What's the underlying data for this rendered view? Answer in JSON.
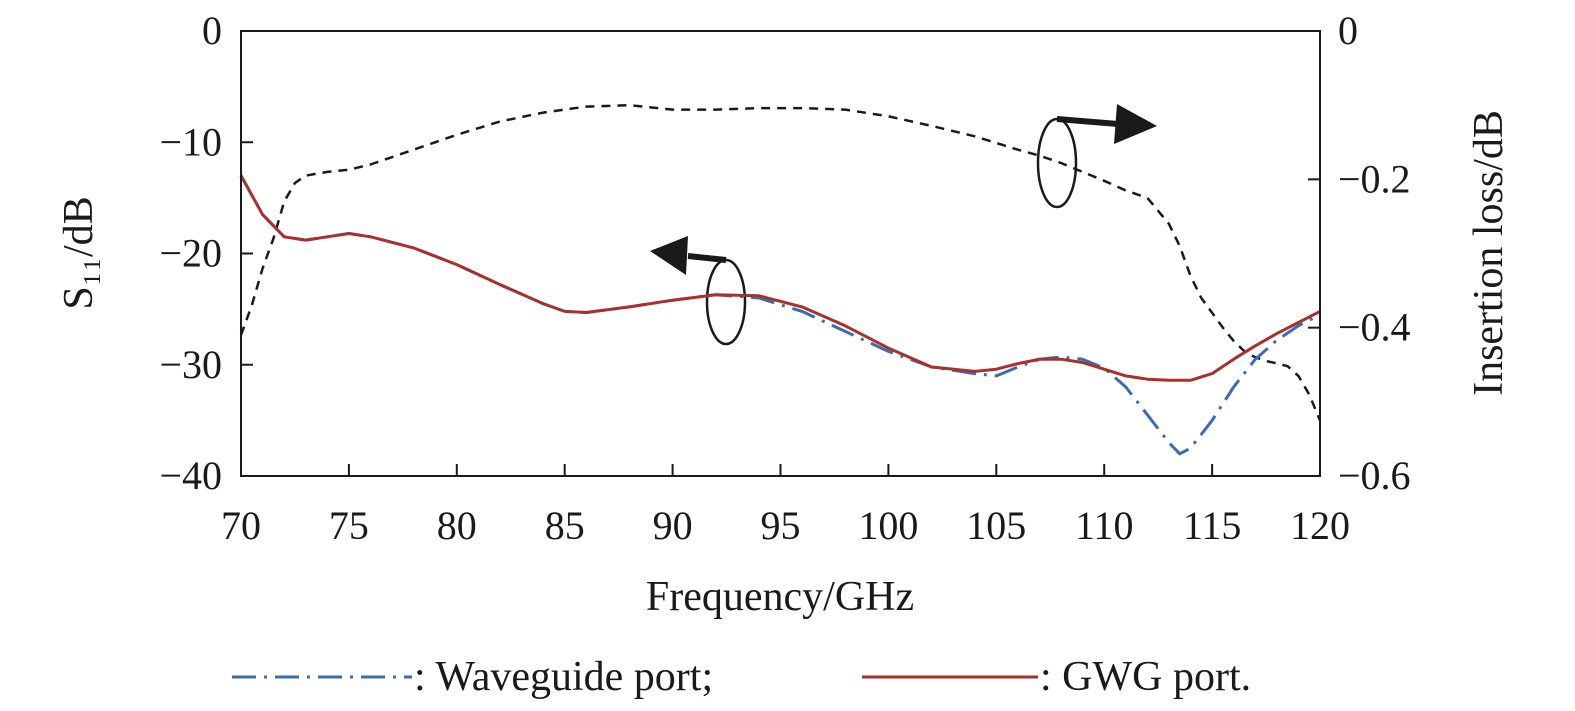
{
  "chart_data": {
    "type": "line",
    "xlabel": "Frequency/GHz",
    "ylabel_left": "S₁₁/dB",
    "ylabel_right": "Insertion loss/dB",
    "xlim": [
      70,
      120
    ],
    "ylim_left": [
      -40,
      0
    ],
    "ylim_right": [
      -0.6,
      0
    ],
    "x_ticks": [
      70,
      75,
      80,
      85,
      90,
      95,
      100,
      105,
      110,
      115,
      120
    ],
    "y_ticks_left": [
      0,
      -10,
      -20,
      -30,
      -40
    ],
    "y_ticks_right": [
      0,
      -0.2,
      -0.4,
      -0.6
    ],
    "x_tick_labels": [
      "70",
      "75",
      "80",
      "85",
      "90",
      "95",
      "100",
      "105",
      "110",
      "115",
      "120"
    ],
    "y_tick_labels_left": [
      "0",
      "−10",
      "−20",
      "−30",
      "−40"
    ],
    "y_tick_labels_right": [
      "0",
      "−0.2",
      "−0.4",
      "−0.6"
    ],
    "grid": false,
    "legend_position": "bottom",
    "series": [
      {
        "name": "Waveguide port;",
        "axis": "left",
        "color": "#3d6bb3",
        "style": "dash-dot",
        "x": [
          70,
          71,
          72,
          73,
          74,
          75,
          76,
          78,
          80,
          82,
          84,
          85,
          86,
          88,
          90,
          92,
          94,
          96,
          98,
          100,
          102,
          104,
          105,
          106,
          107,
          108,
          109,
          110,
          111,
          112,
          113,
          113.5,
          114,
          115,
          116,
          117,
          118,
          119,
          120
        ],
        "y": [
          -13,
          -16.5,
          -18.5,
          -18.8,
          -18.5,
          -18.2,
          -18.5,
          -19.5,
          -21,
          -22.8,
          -24.5,
          -25.2,
          -25.3,
          -24.8,
          -24.2,
          -23.7,
          -24,
          -25.2,
          -27,
          -28.8,
          -30.2,
          -30.8,
          -31,
          -30.2,
          -29.5,
          -29.3,
          -29.5,
          -30.3,
          -32,
          -34.5,
          -37,
          -38,
          -37.5,
          -35,
          -32,
          -29.5,
          -27.8,
          -26.5,
          -25.5
        ]
      },
      {
        "name": "GWG port.",
        "axis": "left",
        "color": "#a8312e",
        "style": "solid",
        "x": [
          70,
          71,
          72,
          73,
          74,
          75,
          76,
          78,
          80,
          82,
          84,
          85,
          86,
          88,
          90,
          92,
          94,
          96,
          98,
          100,
          102,
          104,
          105,
          106,
          107,
          108,
          109,
          110,
          111,
          112,
          113,
          114,
          115,
          116,
          117,
          118,
          119,
          120
        ],
        "y": [
          -13,
          -16.5,
          -18.5,
          -18.8,
          -18.5,
          -18.2,
          -18.5,
          -19.5,
          -21,
          -22.8,
          -24.5,
          -25.2,
          -25.3,
          -24.8,
          -24.2,
          -23.7,
          -23.8,
          -24.8,
          -26.5,
          -28.5,
          -30.2,
          -30.6,
          -30.4,
          -29.9,
          -29.5,
          -29.5,
          -29.8,
          -30.4,
          -31,
          -31.3,
          -31.4,
          -31.4,
          -30.8,
          -29.5,
          -28.3,
          -27.2,
          -26.2,
          -25.2
        ]
      },
      {
        "name": "",
        "axis": "right",
        "color": "#1a1a1a",
        "style": "dashed",
        "x": [
          70,
          70.5,
          71,
          71.5,
          72,
          72.5,
          73,
          74,
          75,
          76,
          78,
          80,
          82,
          84,
          86,
          88,
          90,
          92,
          94,
          96,
          98,
          100,
          102,
          104,
          106,
          107,
          108,
          109,
          110,
          111,
          112,
          113,
          113.5,
          114,
          114.5,
          115,
          115.5,
          116,
          116.5,
          117,
          117.5,
          118,
          118.5,
          119,
          119.5,
          120
        ],
        "y": [
          -0.41,
          -0.37,
          -0.32,
          -0.28,
          -0.23,
          -0.205,
          -0.195,
          -0.19,
          -0.187,
          -0.18,
          -0.16,
          -0.14,
          -0.122,
          -0.11,
          -0.102,
          -0.1,
          -0.106,
          -0.106,
          -0.104,
          -0.104,
          -0.106,
          -0.115,
          -0.128,
          -0.142,
          -0.16,
          -0.168,
          -0.178,
          -0.19,
          -0.202,
          -0.215,
          -0.225,
          -0.26,
          -0.29,
          -0.33,
          -0.36,
          -0.38,
          -0.4,
          -0.418,
          -0.432,
          -0.44,
          -0.445,
          -0.448,
          -0.452,
          -0.465,
          -0.49,
          -0.525
        ]
      }
    ],
    "legend": [
      {
        "label": ": Waveguide port;",
        "series_index": 0
      },
      {
        "label": ": GWG port.",
        "series_index": 1
      }
    ]
  }
}
